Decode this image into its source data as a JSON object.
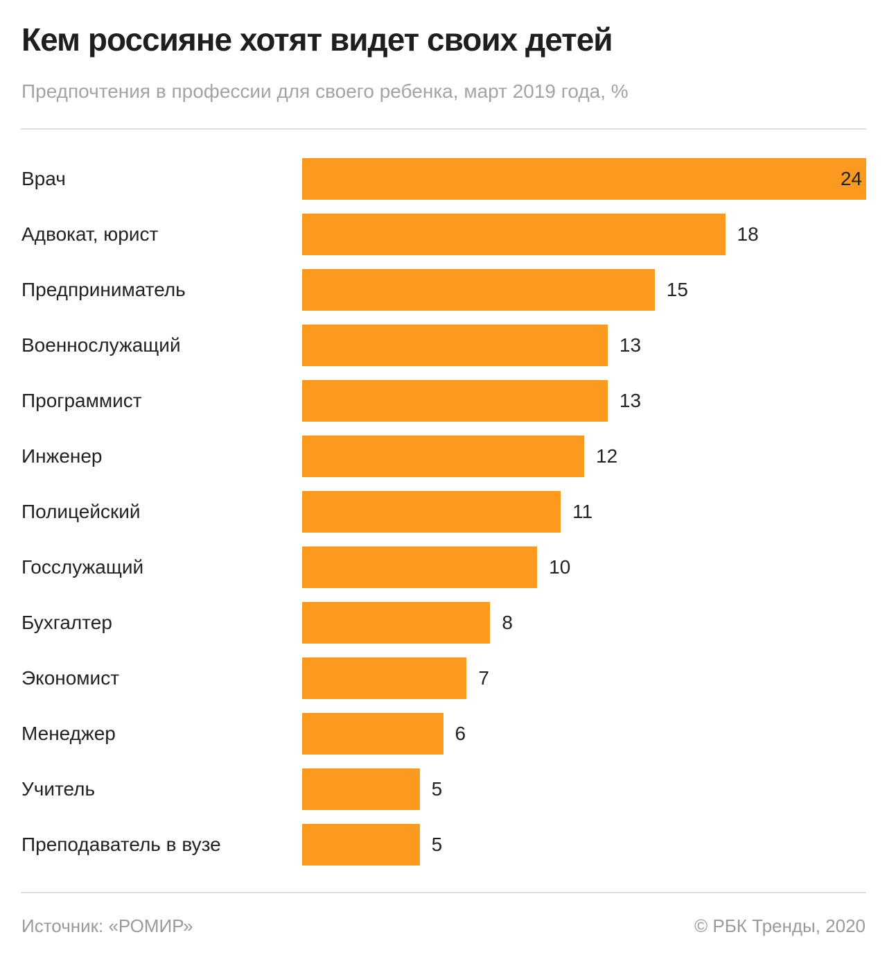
{
  "chart_data": {
    "type": "bar",
    "orientation": "horizontal",
    "title": "Кем россияне хотят видет своих детей",
    "subtitle": "Предпочтения в профессии для своего ребенка, март 2019 года, %",
    "categories": [
      "Врач",
      "Адвокат, юрист",
      "Предприниматель",
      "Военнослужащий",
      "Программист",
      "Инженер",
      "Полицейский",
      "Госслужащий",
      "Бухгалтер",
      "Экономист",
      "Менеджер",
      "Учитель",
      "Преподаватель в вузе"
    ],
    "values": [
      24,
      18,
      15,
      13,
      13,
      12,
      11,
      10,
      8,
      7,
      6,
      5,
      5
    ],
    "xlim": [
      0,
      24
    ],
    "grid": false,
    "data_labels": true,
    "bar_color": "#fb9a1f"
  },
  "footer": {
    "source": "Источник: «РОМИР»",
    "copyright": "© РБК Тренды, 2020"
  }
}
